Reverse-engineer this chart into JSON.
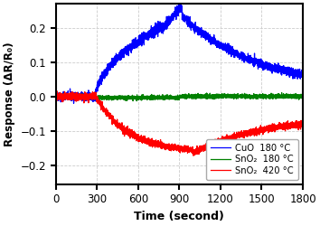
{
  "xlabel": "Time (second)",
  "ylabel": "Response (ΔR/R₀)",
  "xlim": [
    0,
    1800
  ],
  "ylim": [
    -0.255,
    0.27
  ],
  "xticks": [
    0,
    300,
    600,
    900,
    1200,
    1500,
    1800
  ],
  "yticks": [
    -0.2,
    -0.1,
    0.0,
    0.1,
    0.2
  ],
  "background_color": "#ffffff",
  "grid_color": "#cccccc",
  "line_blue_color": "#0000ff",
  "line_green_color": "#008000",
  "line_red_color": "#ff0000",
  "legend_labels": [
    "CuO  180 °C",
    "SnO₂  180 °C",
    "SnO₂  420 °C"
  ],
  "seed": 42
}
